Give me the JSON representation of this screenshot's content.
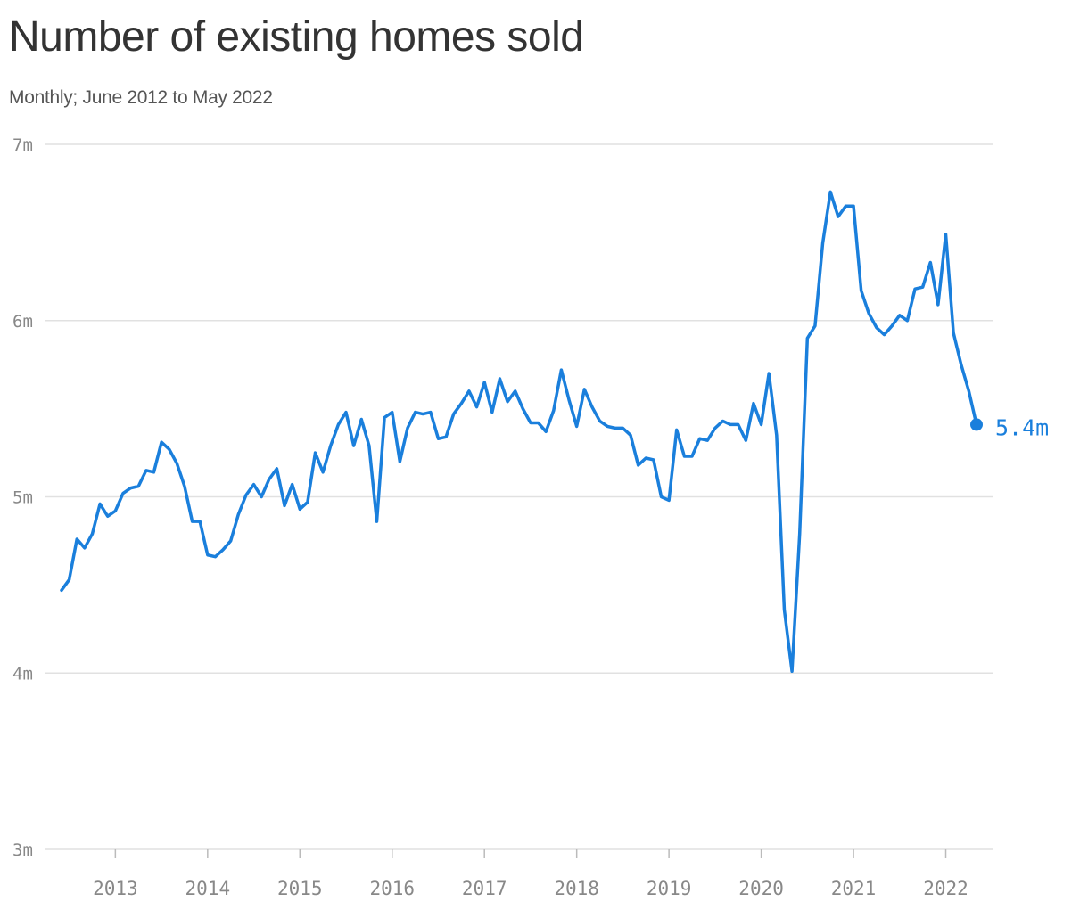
{
  "chart_data": {
    "type": "line",
    "title": "Number of existing homes sold",
    "subtitle": "Monthly; June 2012 to May 2022",
    "xlabel": "",
    "ylabel": "",
    "grid": true,
    "y_range": [
      3,
      7
    ],
    "y_ticks": [
      {
        "value": 3,
        "label": "3m"
      },
      {
        "value": 4,
        "label": "4m"
      },
      {
        "value": 5,
        "label": "5m"
      },
      {
        "value": 6,
        "label": "6m"
      },
      {
        "value": 7,
        "label": "7m"
      }
    ],
    "x_ticks": [
      {
        "value": "2013-01",
        "label": "2013"
      },
      {
        "value": "2014-01",
        "label": "2014"
      },
      {
        "value": "2015-01",
        "label": "2015"
      },
      {
        "value": "2016-01",
        "label": "2016"
      },
      {
        "value": "2017-01",
        "label": "2017"
      },
      {
        "value": "2018-01",
        "label": "2018"
      },
      {
        "value": "2019-01",
        "label": "2019"
      },
      {
        "value": "2020-01",
        "label": "2020"
      },
      {
        "value": "2021-01",
        "label": "2021"
      },
      {
        "value": "2022-01",
        "label": "2022"
      }
    ],
    "end_label": "5.4m",
    "series_color": "#1a7fdc",
    "series": [
      {
        "x": [
          "2012-06",
          "2012-07",
          "2012-08",
          "2012-09",
          "2012-10",
          "2012-11",
          "2012-12",
          "2013-01",
          "2013-02",
          "2013-03",
          "2013-04",
          "2013-05",
          "2013-06",
          "2013-07",
          "2013-08",
          "2013-09",
          "2013-10",
          "2013-11",
          "2013-12",
          "2014-01",
          "2014-02",
          "2014-03",
          "2014-04",
          "2014-05",
          "2014-06",
          "2014-07",
          "2014-08",
          "2014-09",
          "2014-10",
          "2014-11",
          "2014-12",
          "2015-01",
          "2015-02",
          "2015-03",
          "2015-04",
          "2015-05",
          "2015-06",
          "2015-07",
          "2015-08",
          "2015-09",
          "2015-10",
          "2015-11",
          "2015-12",
          "2016-01",
          "2016-02",
          "2016-03",
          "2016-04",
          "2016-05",
          "2016-06",
          "2016-07",
          "2016-08",
          "2016-09",
          "2016-10",
          "2016-11",
          "2016-12",
          "2017-01",
          "2017-02",
          "2017-03",
          "2017-04",
          "2017-05",
          "2017-06",
          "2017-07",
          "2017-08",
          "2017-09",
          "2017-10",
          "2017-11",
          "2017-12",
          "2018-01",
          "2018-02",
          "2018-03",
          "2018-04",
          "2018-05",
          "2018-06",
          "2018-07",
          "2018-08",
          "2018-09",
          "2018-10",
          "2018-11",
          "2018-12",
          "2019-01",
          "2019-02",
          "2019-03",
          "2019-04",
          "2019-05",
          "2019-06",
          "2019-07",
          "2019-08",
          "2019-09",
          "2019-10",
          "2019-11",
          "2019-12",
          "2020-01",
          "2020-02",
          "2020-03",
          "2020-04",
          "2020-05",
          "2020-06",
          "2020-07",
          "2020-08",
          "2020-09",
          "2020-10",
          "2020-11",
          "2020-12",
          "2021-01",
          "2021-02",
          "2021-03",
          "2021-04",
          "2021-05",
          "2021-06",
          "2021-07",
          "2021-08",
          "2021-09",
          "2021-10",
          "2021-11",
          "2021-12",
          "2022-01",
          "2022-02",
          "2022-03",
          "2022-04",
          "2022-05"
        ],
        "values": [
          4.47,
          4.53,
          4.76,
          4.71,
          4.79,
          4.96,
          4.89,
          4.92,
          5.02,
          5.05,
          5.06,
          5.15,
          5.14,
          5.31,
          5.27,
          5.19,
          5.06,
          4.86,
          4.86,
          4.67,
          4.66,
          4.7,
          4.75,
          4.9,
          5.01,
          5.07,
          5.0,
          5.1,
          5.16,
          4.95,
          5.07,
          4.93,
          4.97,
          5.25,
          5.14,
          5.29,
          5.41,
          5.48,
          5.29,
          5.44,
          5.29,
          4.86,
          5.45,
          5.48,
          5.2,
          5.39,
          5.48,
          5.47,
          5.48,
          5.33,
          5.34,
          5.47,
          5.53,
          5.6,
          5.51,
          5.65,
          5.48,
          5.67,
          5.54,
          5.6,
          5.5,
          5.42,
          5.42,
          5.37,
          5.49,
          5.72,
          5.55,
          5.4,
          5.61,
          5.51,
          5.43,
          5.4,
          5.39,
          5.39,
          5.35,
          5.18,
          5.22,
          5.21,
          5.0,
          4.98,
          5.38,
          5.23,
          5.23,
          5.33,
          5.32,
          5.39,
          5.43,
          5.41,
          5.41,
          5.32,
          5.53,
          5.41,
          5.7,
          5.35,
          4.36,
          4.01,
          4.79,
          5.9,
          5.97,
          6.44,
          6.73,
          6.59,
          6.65,
          6.65,
          6.17,
          6.04,
          5.96,
          5.92,
          5.97,
          6.03,
          6.0,
          6.18,
          6.19,
          6.33,
          6.09,
          6.49,
          5.93,
          5.75,
          5.6,
          5.41
        ]
      }
    ]
  }
}
